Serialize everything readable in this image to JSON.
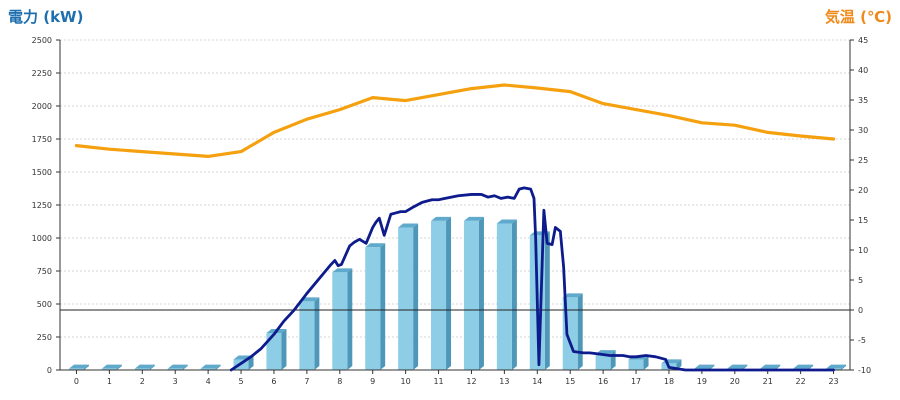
{
  "colors": {
    "power_line": "#0d1b8c",
    "temperature": "#f5a00f",
    "bar_front": "#8ecde6",
    "bar_side": "#4f97b8",
    "bar_top": "#5ea9cc",
    "grid": "#c8c8c8",
    "left_title": "#1d6fb0",
    "right_title": "#ef8a1a"
  },
  "chart_data": {
    "type": "bar",
    "categories": [
      "0",
      "1",
      "2",
      "3",
      "4",
      "5",
      "6",
      "7",
      "8",
      "9",
      "10",
      "11",
      "12",
      "13",
      "14",
      "15",
      "16",
      "17",
      "18",
      "19",
      "20",
      "21",
      "22",
      "23"
    ],
    "left_axis": {
      "title": "電力 (kW)",
      "range": [
        0,
        2500
      ],
      "ticks": [
        "0",
        "250",
        "500",
        "750",
        "1000",
        "1250",
        "1500",
        "1750",
        "2000",
        "2250",
        "2500"
      ]
    },
    "right_axis": {
      "title": "気温 (℃)",
      "range": [
        -10,
        45
      ],
      "ticks": [
        "-10",
        "-5",
        "0",
        "5",
        "10",
        "15",
        "20",
        "25",
        "30",
        "35",
        "40",
        "45"
      ]
    },
    "grid": true,
    "series": [
      {
        "type": "bar",
        "axis": "left",
        "values": [
          10,
          10,
          10,
          10,
          10,
          80,
          280,
          520,
          740,
          930,
          1080,
          1130,
          1130,
          1110,
          1020,
          550,
          120,
          80,
          50,
          10,
          10,
          10,
          10,
          10
        ]
      },
      {
        "type": "line",
        "axis": "right",
        "x": [
          0,
          1,
          2,
          3,
          4,
          5,
          6,
          7,
          8,
          9,
          10,
          11,
          12,
          13,
          14,
          15,
          16,
          17,
          18,
          19,
          20,
          21,
          22,
          23
        ],
        "values": [
          27.4,
          26.8,
          26.4,
          26,
          25.6,
          26.4,
          29.6,
          31.8,
          33.4,
          35.4,
          34.9,
          35.9,
          36.9,
          37.5,
          37,
          36.4,
          34.4,
          33.4,
          32.4,
          31.2,
          30.8,
          29.6,
          29,
          28.5
        ]
      },
      {
        "type": "line",
        "axis": "left",
        "x": [
          4.7,
          5.0,
          5.3,
          5.6,
          6.0,
          6.3,
          6.6,
          7.0,
          7.3,
          7.7,
          7.85,
          7.95,
          8.05,
          8.3,
          8.45,
          8.6,
          8.8,
          9.0,
          9.1,
          9.2,
          9.35,
          9.55,
          9.7,
          9.85,
          10.0,
          10.2,
          10.5,
          10.8,
          11.0,
          11.2,
          11.6,
          12.0,
          12.3,
          12.5,
          12.7,
          12.9,
          13.1,
          13.3,
          13.45,
          13.6,
          13.8,
          13.9,
          13.95,
          14.05,
          14.2,
          14.3,
          14.45,
          14.55,
          14.7,
          14.8,
          14.9,
          15.1,
          15.4,
          15.6,
          15.9,
          16.2,
          16.6,
          16.8,
          17.0,
          17.3,
          17.6,
          17.9,
          18.0,
          18.5,
          19,
          20,
          21,
          22,
          23
        ],
        "values": [
          0,
          50,
          100,
          160,
          270,
          370,
          450,
          580,
          670,
          790,
          830,
          790,
          800,
          940,
          970,
          990,
          960,
          1080,
          1120,
          1150,
          1020,
          1180,
          1190,
          1200,
          1200,
          1230,
          1270,
          1290,
          1290,
          1300,
          1320,
          1330,
          1330,
          1310,
          1320,
          1300,
          1310,
          1300,
          1370,
          1380,
          1370,
          1300,
          1000,
          40,
          1210,
          960,
          950,
          1080,
          1050,
          780,
          270,
          140,
          130,
          130,
          120,
          110,
          110,
          100,
          100,
          110,
          100,
          80,
          20,
          0,
          0,
          0,
          0,
          0,
          0
        ]
      }
    ],
    "zero_line_right": 0
  }
}
